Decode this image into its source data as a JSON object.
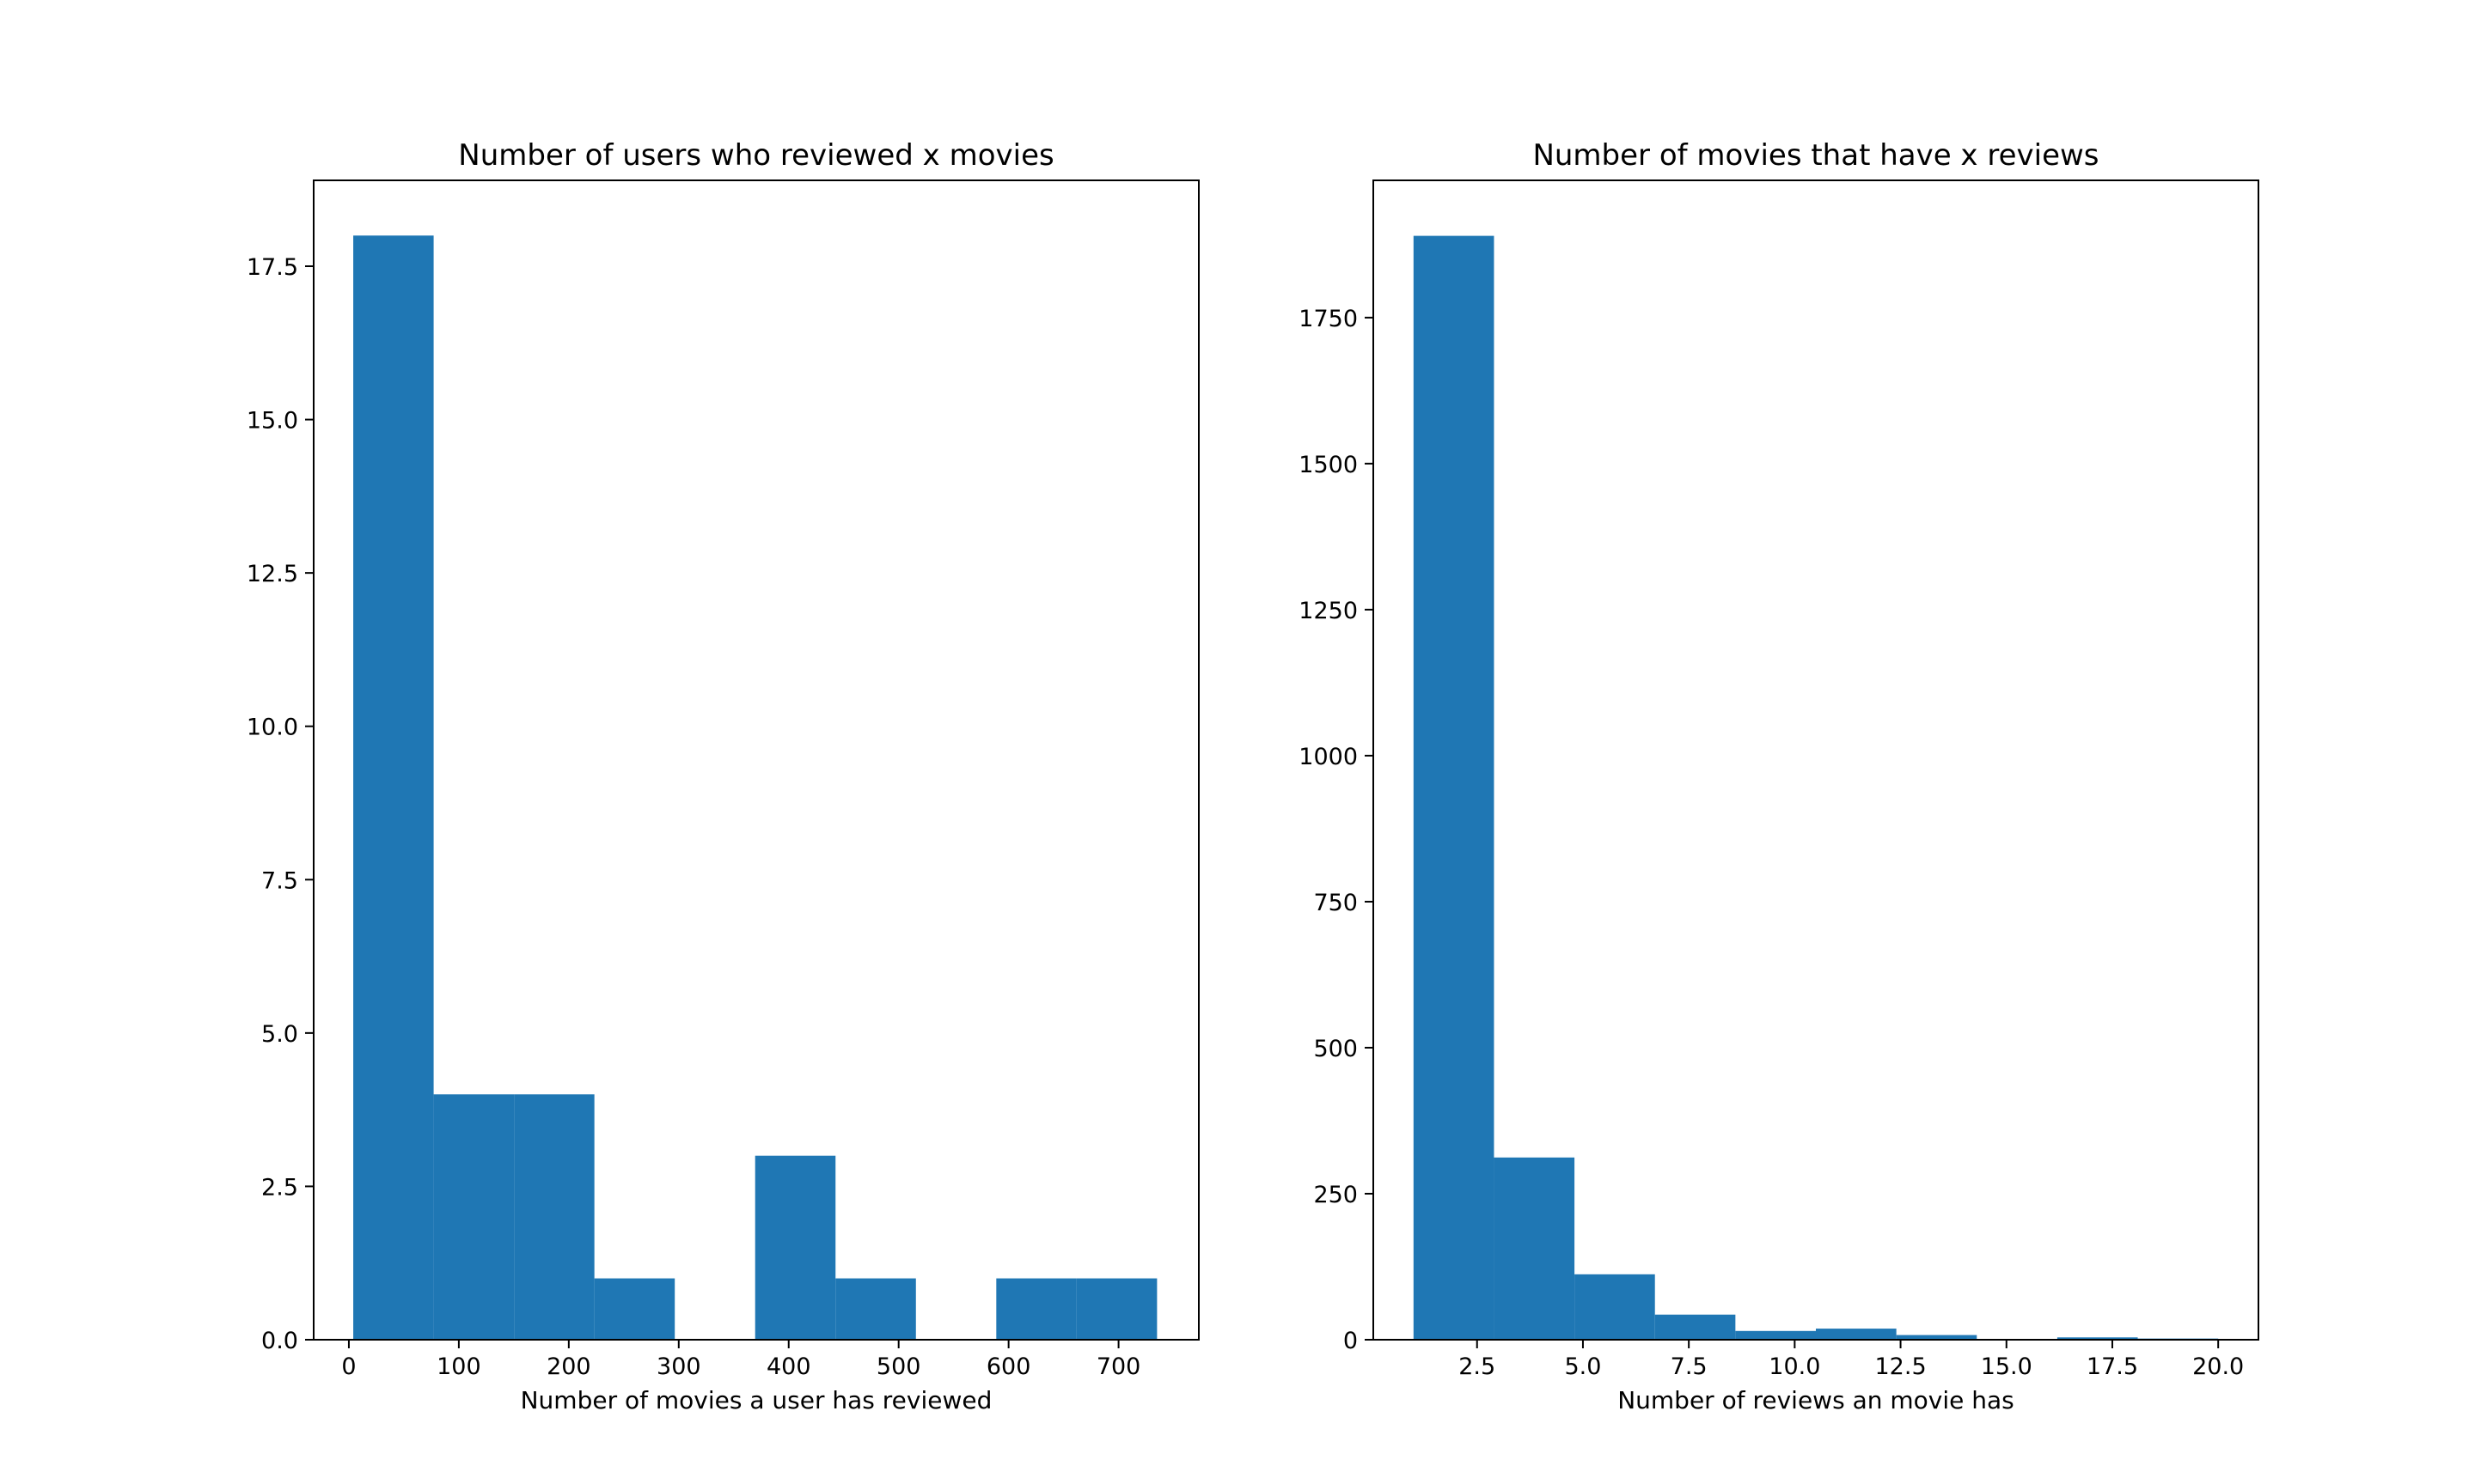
{
  "chart_data": [
    {
      "type": "bar",
      "title": "Number of users who reviewed x movies",
      "xlabel": "Number of movies a user has reviewed",
      "ylabel": "",
      "xlim": [
        -32,
        773
      ],
      "ylim": [
        0,
        18.9
      ],
      "xticks": [
        0,
        100,
        200,
        300,
        400,
        500,
        600,
        700
      ],
      "xtick_labels": [
        "0",
        "100",
        "200",
        "300",
        "400",
        "500",
        "600",
        "700"
      ],
      "yticks": [
        0,
        2.5,
        5,
        7.5,
        10,
        12.5,
        15,
        17.5
      ],
      "ytick_labels": [
        "0.0",
        "2.5",
        "5.0",
        "7.5",
        "10.0",
        "12.5",
        "15.0",
        "17.5"
      ],
      "bin_edges": [
        4,
        77.1,
        150.2,
        223.3,
        296.4,
        369.5,
        442.6,
        515.7,
        588.8,
        661.9,
        735
      ],
      "values": [
        18,
        4,
        4,
        1,
        0,
        3,
        1,
        0,
        1,
        1
      ],
      "color": "#1f77b4",
      "grid": false,
      "legend": "none"
    },
    {
      "type": "bar",
      "title": "Number of movies that have x reviews",
      "xlabel": "Number of reviews an movie has",
      "ylabel": "",
      "xlim": [
        0.05,
        20.95
      ],
      "ylim": [
        0,
        1985
      ],
      "xticks": [
        2.5,
        5,
        7.5,
        10,
        12.5,
        15,
        17.5,
        20
      ],
      "xtick_labels": [
        "2.5",
        "5.0",
        "7.5",
        "10.0",
        "12.5",
        "15.0",
        "17.5",
        "20.0"
      ],
      "yticks": [
        0,
        250,
        500,
        750,
        1000,
        1250,
        1500,
        1750
      ],
      "ytick_labels": [
        "0",
        "250",
        "500",
        "750",
        "1000",
        "1250",
        "1500",
        "1750"
      ],
      "bin_edges": [
        1,
        2.9,
        4.8,
        6.7,
        8.6,
        10.5,
        12.4,
        14.3,
        16.2,
        18.1,
        20
      ],
      "values": [
        1890,
        312,
        112,
        43,
        15,
        19,
        8,
        0,
        4,
        2
      ],
      "color": "#1f77b4",
      "grid": false,
      "legend": "none"
    }
  ]
}
